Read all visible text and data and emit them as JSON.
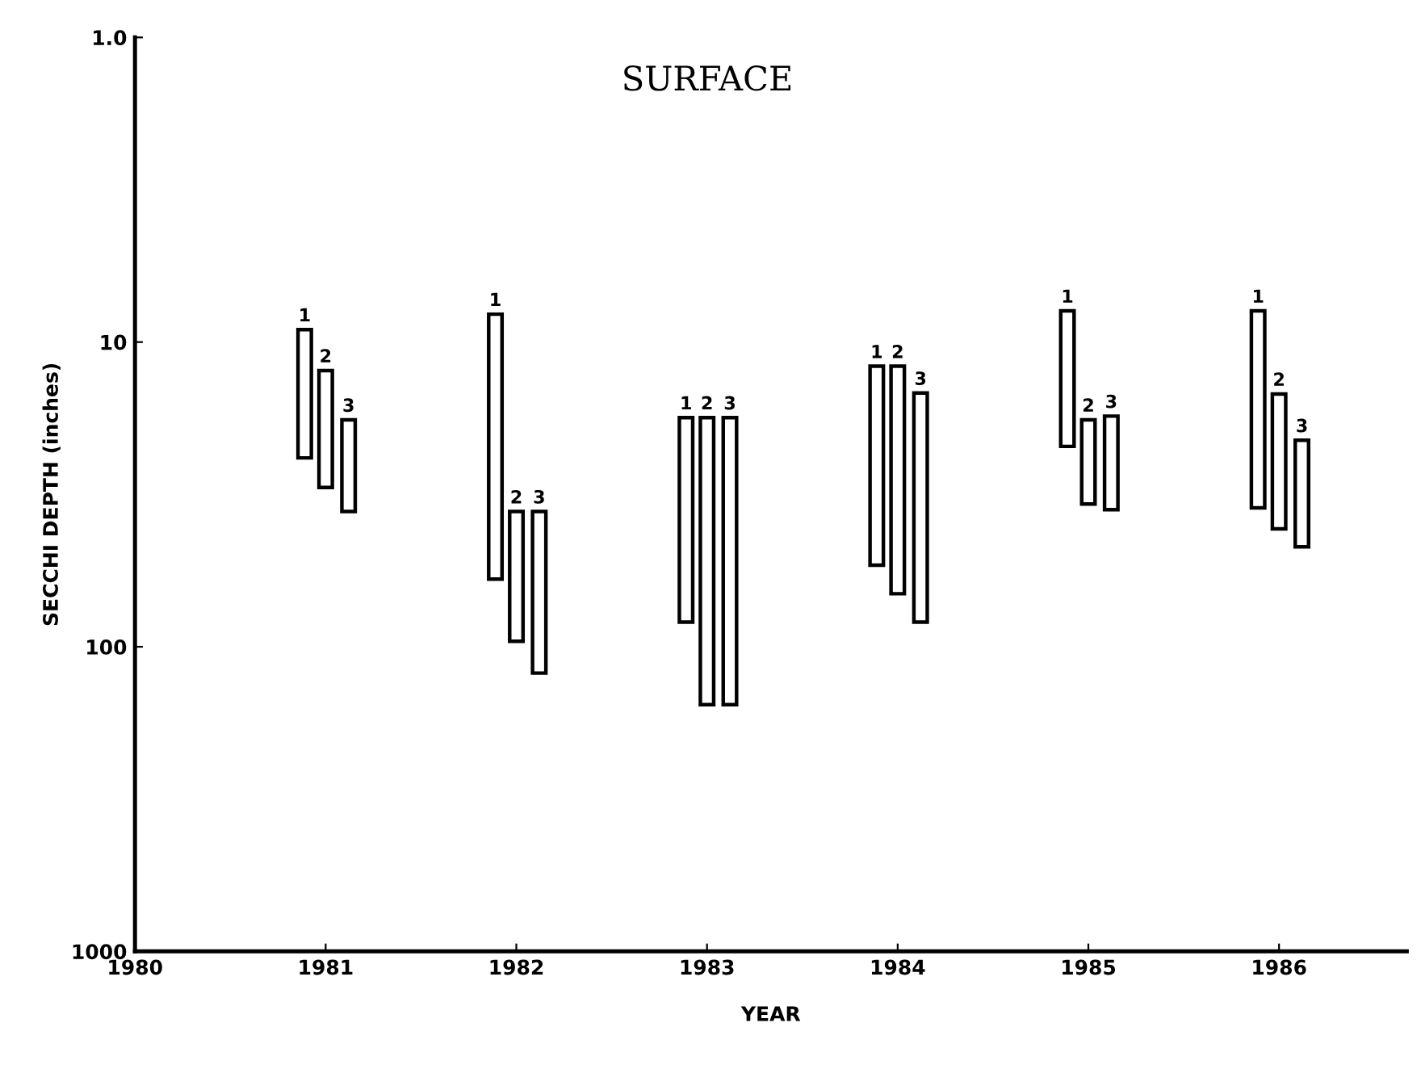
{
  "chart_data": {
    "type": "bar",
    "title": "SURFACE",
    "xlabel": "YEAR",
    "ylabel": "SECCHI DEPTH (inches)",
    "log": "y",
    "ylim": [
      1000,
      1
    ],
    "yticks": [
      {
        "value": 1,
        "label": "1.0"
      },
      10,
      100,
      1000
    ],
    "xlim": [
      1980,
      1986.67
    ],
    "xticks": [
      1980,
      1981,
      1982,
      1983,
      1984,
      1985,
      1986
    ],
    "grid": false,
    "legend": false,
    "series": [
      {
        "name": "1",
        "color": "#000000",
        "x": [
          1980.89,
          1981.89,
          1982.89,
          1983.89,
          1984.89,
          1985.89
        ],
        "base": [
          9.1,
          8.1,
          17.7,
          12,
          7.9,
          7.9
        ],
        "values": [
          14.9,
          51.9,
          65.3,
          42,
          14.1,
          27.1
        ]
      },
      {
        "name": "2",
        "color": "#000000",
        "x": [
          1981,
          1982,
          1983,
          1984,
          1985,
          1986
        ],
        "base": [
          12.4,
          36,
          17.7,
          12,
          18,
          14.8
        ],
        "values": [
          17.6,
          60,
          137.3,
          55,
          16,
          26.2
        ]
      },
      {
        "name": "3",
        "color": "#000000",
        "x": [
          1981.12,
          1982.12,
          1983.12,
          1984.12,
          1985.12,
          1986.12
        ],
        "base": [
          18,
          36,
          17.7,
          14.7,
          17.5,
          21
        ],
        "values": [
          18,
          86,
          137.3,
          68.3,
          18,
          26
        ]
      }
    ]
  }
}
